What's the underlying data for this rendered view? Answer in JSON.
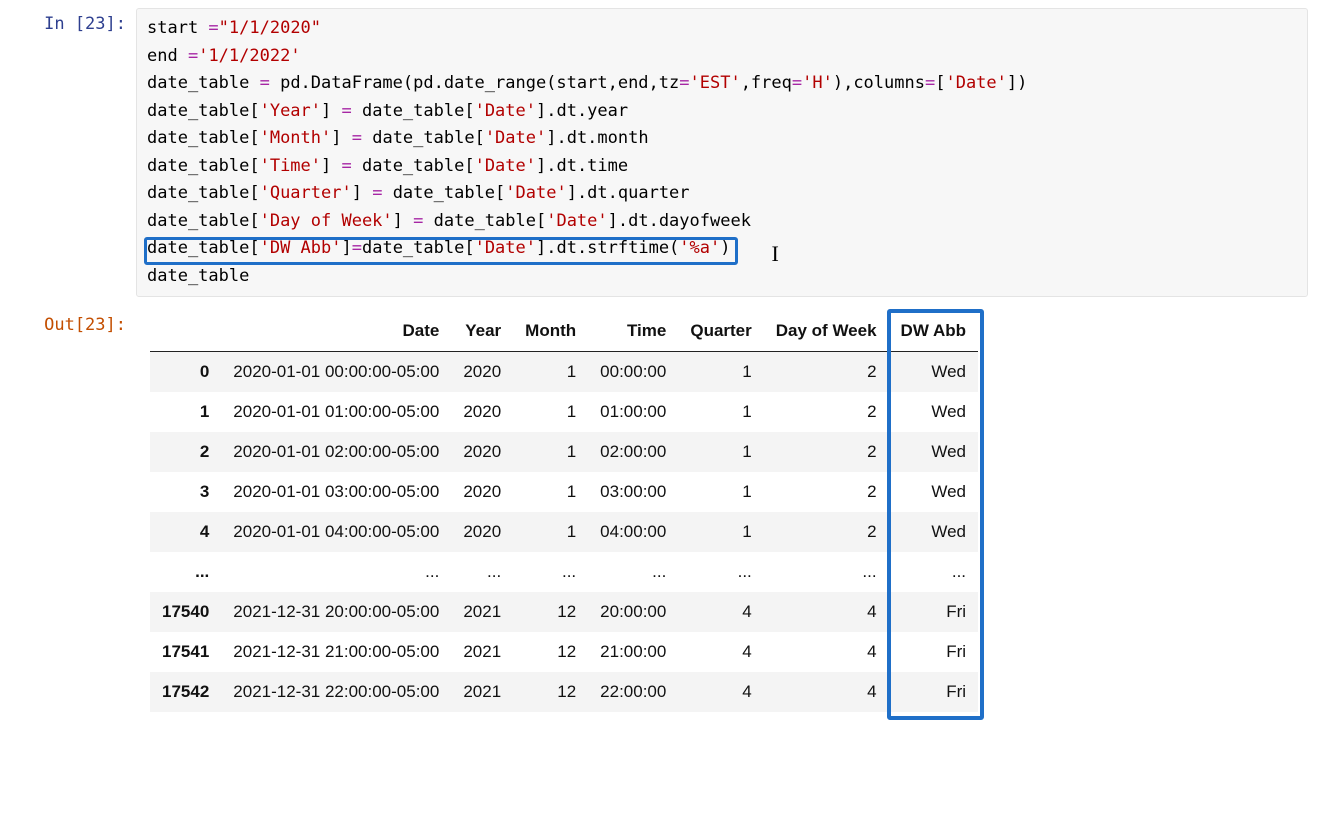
{
  "cell": {
    "exec_count": 23,
    "in_label": "In [23]:",
    "out_label": "Out[23]:",
    "code_lines": [
      [
        {
          "t": "start ",
          "c": "fn"
        },
        {
          "t": "=",
          "c": "op"
        },
        {
          "t": "\"1/1/2020\"",
          "c": "str"
        }
      ],
      [
        {
          "t": "end ",
          "c": "fn"
        },
        {
          "t": "=",
          "c": "op"
        },
        {
          "t": "'1/1/2022'",
          "c": "str"
        }
      ],
      [
        {
          "t": "date_table ",
          "c": "fn"
        },
        {
          "t": "=",
          "c": "op"
        },
        {
          "t": " pd.DataFrame(pd.date_range(start,end,tz",
          "c": "fn"
        },
        {
          "t": "=",
          "c": "op"
        },
        {
          "t": "'EST'",
          "c": "str"
        },
        {
          "t": ",freq",
          "c": "fn"
        },
        {
          "t": "=",
          "c": "op"
        },
        {
          "t": "'H'",
          "c": "str"
        },
        {
          "t": "),columns",
          "c": "fn"
        },
        {
          "t": "=",
          "c": "op"
        },
        {
          "t": "[",
          "c": "fn"
        },
        {
          "t": "'Date'",
          "c": "str"
        },
        {
          "t": "])",
          "c": "fn"
        }
      ],
      [
        {
          "t": "date_table[",
          "c": "fn"
        },
        {
          "t": "'Year'",
          "c": "str"
        },
        {
          "t": "] ",
          "c": "fn"
        },
        {
          "t": "=",
          "c": "op"
        },
        {
          "t": " date_table[",
          "c": "fn"
        },
        {
          "t": "'Date'",
          "c": "str"
        },
        {
          "t": "].dt.year",
          "c": "fn"
        }
      ],
      [
        {
          "t": "date_table[",
          "c": "fn"
        },
        {
          "t": "'Month'",
          "c": "str"
        },
        {
          "t": "] ",
          "c": "fn"
        },
        {
          "t": "=",
          "c": "op"
        },
        {
          "t": " date_table[",
          "c": "fn"
        },
        {
          "t": "'Date'",
          "c": "str"
        },
        {
          "t": "].dt.month",
          "c": "fn"
        }
      ],
      [
        {
          "t": "date_table[",
          "c": "fn"
        },
        {
          "t": "'Time'",
          "c": "str"
        },
        {
          "t": "] ",
          "c": "fn"
        },
        {
          "t": "=",
          "c": "op"
        },
        {
          "t": " date_table[",
          "c": "fn"
        },
        {
          "t": "'Date'",
          "c": "str"
        },
        {
          "t": "].dt.time",
          "c": "fn"
        }
      ],
      [
        {
          "t": "date_table[",
          "c": "fn"
        },
        {
          "t": "'Quarter'",
          "c": "str"
        },
        {
          "t": "] ",
          "c": "fn"
        },
        {
          "t": "=",
          "c": "op"
        },
        {
          "t": " date_table[",
          "c": "fn"
        },
        {
          "t": "'Date'",
          "c": "str"
        },
        {
          "t": "].dt.quarter",
          "c": "fn"
        }
      ],
      [
        {
          "t": "date_table[",
          "c": "fn"
        },
        {
          "t": "'Day of Week'",
          "c": "str"
        },
        {
          "t": "] ",
          "c": "fn"
        },
        {
          "t": "=",
          "c": "op"
        },
        {
          "t": " date_table[",
          "c": "fn"
        },
        {
          "t": "'Date'",
          "c": "str"
        },
        {
          "t": "].dt.dayofweek",
          "c": "fn"
        }
      ],
      [
        {
          "t": "date_table[",
          "c": "fn"
        },
        {
          "t": "'DW Abb'",
          "c": "str"
        },
        {
          "t": "]",
          "c": "fn"
        },
        {
          "t": "=",
          "c": "op"
        },
        {
          "t": "date_table[",
          "c": "fn"
        },
        {
          "t": "'Date'",
          "c": "str"
        },
        {
          "t": "].dt.strftime(",
          "c": "fn"
        },
        {
          "t": "'%a'",
          "c": "str"
        },
        {
          "t": ")",
          "c": "fn"
        }
      ],
      [
        {
          "t": "date_table",
          "c": "fn"
        }
      ]
    ],
    "highlight_line_index": 8
  },
  "dataframe": {
    "columns": [
      "Date",
      "Year",
      "Month",
      "Time",
      "Quarter",
      "Day of Week",
      "DW Abb"
    ],
    "highlight_col_index": 6,
    "rows": [
      {
        "idx": "0",
        "cells": [
          "2020-01-01 00:00:00-05:00",
          "2020",
          "1",
          "00:00:00",
          "1",
          "2",
          "Wed"
        ]
      },
      {
        "idx": "1",
        "cells": [
          "2020-01-01 01:00:00-05:00",
          "2020",
          "1",
          "01:00:00",
          "1",
          "2",
          "Wed"
        ]
      },
      {
        "idx": "2",
        "cells": [
          "2020-01-01 02:00:00-05:00",
          "2020",
          "1",
          "02:00:00",
          "1",
          "2",
          "Wed"
        ]
      },
      {
        "idx": "3",
        "cells": [
          "2020-01-01 03:00:00-05:00",
          "2020",
          "1",
          "03:00:00",
          "1",
          "2",
          "Wed"
        ]
      },
      {
        "idx": "4",
        "cells": [
          "2020-01-01 04:00:00-05:00",
          "2020",
          "1",
          "04:00:00",
          "1",
          "2",
          "Wed"
        ]
      },
      {
        "idx": "...",
        "cells": [
          "...",
          "...",
          "...",
          "...",
          "...",
          "...",
          "..."
        ]
      },
      {
        "idx": "17540",
        "cells": [
          "2021-12-31 20:00:00-05:00",
          "2021",
          "12",
          "20:00:00",
          "4",
          "4",
          "Fri"
        ]
      },
      {
        "idx": "17541",
        "cells": [
          "2021-12-31 21:00:00-05:00",
          "2021",
          "12",
          "21:00:00",
          "4",
          "4",
          "Fri"
        ]
      },
      {
        "idx": "17542",
        "cells": [
          "2021-12-31 22:00:00-05:00",
          "2021",
          "12",
          "22:00:00",
          "4",
          "4",
          "Fri"
        ]
      }
    ]
  },
  "colors": {
    "code_bg": "#f7f7f7",
    "highlight": "#1f6fc8",
    "in_prompt": "#2e3f8f",
    "out_prompt": "#c34e00",
    "string": "#b20000",
    "operator": "#a626a4"
  }
}
